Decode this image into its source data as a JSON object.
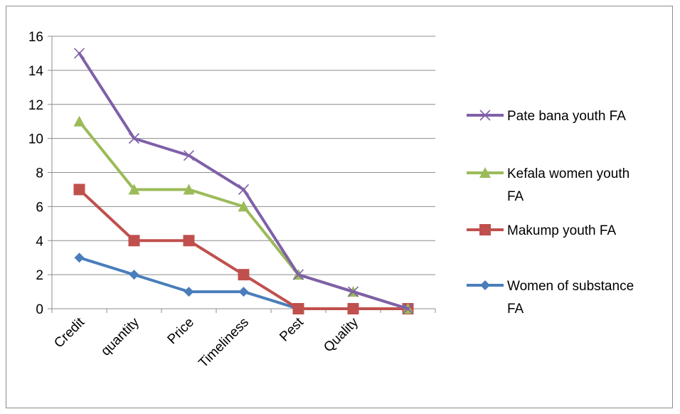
{
  "chart_data": {
    "type": "line",
    "title": "",
    "xlabel": "",
    "ylabel": "",
    "categories": [
      "Credit",
      "quantity",
      "Price",
      "Timeliness",
      "Pest",
      "Quality",
      ""
    ],
    "ylim": [
      0,
      16
    ],
    "yticks": [
      0,
      2,
      4,
      6,
      8,
      10,
      12,
      14,
      16
    ],
    "grid": "horizontal",
    "legend_placement": "right",
    "series": [
      {
        "name": "Pate bana youth  FA",
        "legend_lines": [
          "Pate bana youth  FA"
        ],
        "values": [
          15,
          10,
          9,
          7,
          2,
          1,
          0
        ],
        "color": "#7f60a8",
        "marker": "x"
      },
      {
        "name": "Kefala women youth FA",
        "legend_lines": [
          "Kefala women youth",
          "FA"
        ],
        "values": [
          11,
          7,
          7,
          6,
          2,
          1,
          0
        ],
        "color": "#9bbb59",
        "marker": "triangle"
      },
      {
        "name": "Makump youth  FA",
        "legend_lines": [
          "Makump youth  FA"
        ],
        "values": [
          7,
          4,
          4,
          2,
          0,
          0,
          0
        ],
        "color": "#c0504d",
        "marker": "square"
      },
      {
        "name": "Women of substance FA",
        "legend_lines": [
          "Women of substance",
          "FA"
        ],
        "values": [
          3,
          2,
          1,
          1,
          0,
          0,
          0
        ],
        "color": "#4a7ebb",
        "marker": "diamond"
      }
    ]
  }
}
